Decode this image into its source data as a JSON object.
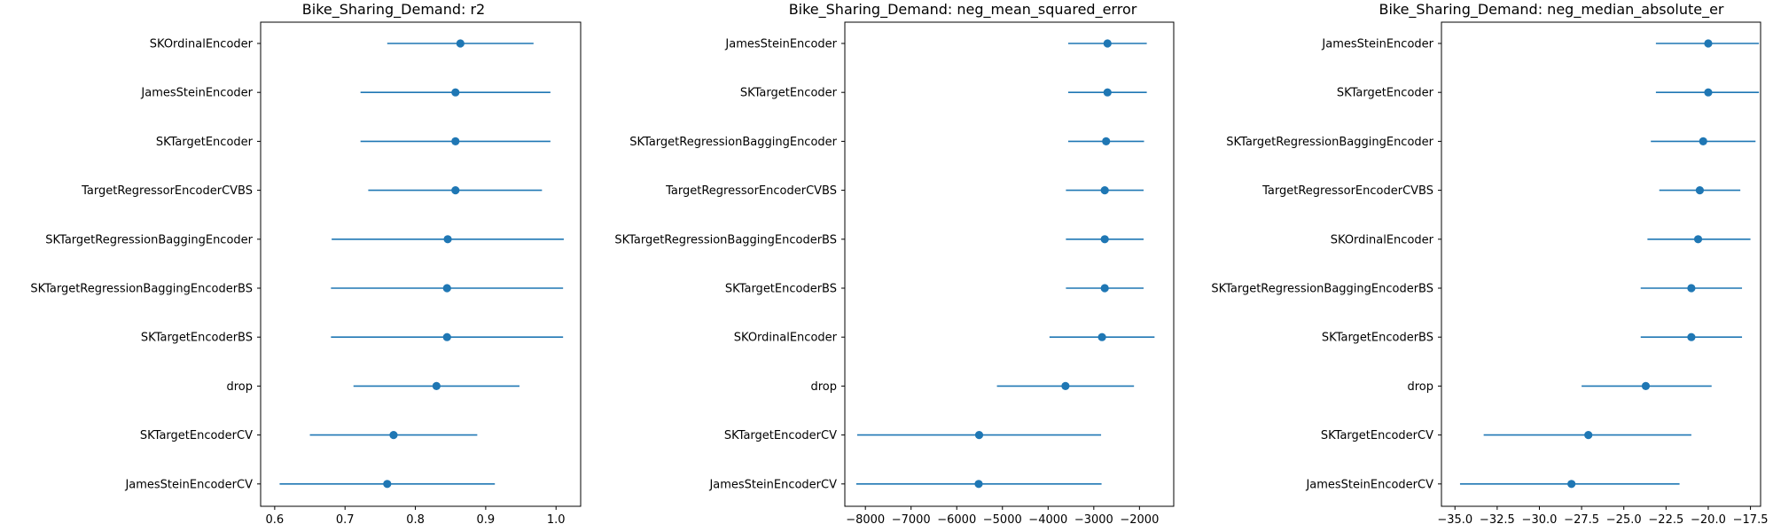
{
  "chart_data": [
    {
      "type": "errorbar",
      "title": "Bike_Sharing_Demand: r2",
      "xlabel": "",
      "ylabel": "",
      "xlim": [
        0.58,
        1.035
      ],
      "xticks": [
        0.6,
        0.7,
        0.8,
        0.9,
        1.0
      ],
      "xtick_labels": [
        "0.6",
        "0.7",
        "0.8",
        "0.9",
        "1.0"
      ],
      "grid": false,
      "color": "#1f77b4",
      "categories": [
        "SKOrdinalEncoder",
        "JamesSteinEncoder",
        "SKTargetEncoder",
        "TargetRegressorEncoderCVBS",
        "SKTargetRegressionBaggingEncoder",
        "SKTargetRegressionBaggingEncoderBS",
        "SKTargetEncoderBS",
        "drop",
        "SKTargetEncoderCV",
        "JamesSteinEncoderCV"
      ],
      "values": [
        0.864,
        0.857,
        0.857,
        0.857,
        0.846,
        0.845,
        0.845,
        0.83,
        0.769,
        0.76
      ],
      "lower": [
        0.76,
        0.722,
        0.722,
        0.733,
        0.681,
        0.68,
        0.68,
        0.712,
        0.65,
        0.607
      ],
      "upper": [
        0.968,
        0.992,
        0.992,
        0.98,
        1.011,
        1.01,
        1.01,
        0.948,
        0.888,
        0.913
      ]
    },
    {
      "type": "errorbar",
      "title": "Bike_Sharing_Demand: neg_mean_squared_error",
      "xlabel": "",
      "ylabel": "",
      "xlim": [
        -8450,
        -1250
      ],
      "xticks": [
        -8000,
        -7000,
        -6000,
        -5000,
        -4000,
        -3000,
        -2000
      ],
      "xtick_labels": [
        "−8000",
        "−7000",
        "−6000",
        "−5000",
        "−4000",
        "−3000",
        "−2000"
      ],
      "grid": false,
      "color": "#1f77b4",
      "categories": [
        "JamesSteinEncoder",
        "SKTargetEncoder",
        "SKTargetRegressionBaggingEncoder",
        "TargetRegressorEncoderCVBS",
        "SKTargetRegressionBaggingEncoderBS",
        "SKTargetEncoderBS",
        "SKOrdinalEncoder",
        "drop",
        "SKTargetEncoderCV",
        "JamesSteinEncoderCV"
      ],
      "values": [
        -2700,
        -2700,
        -2730,
        -2760,
        -2760,
        -2760,
        -2820,
        -3620,
        -5510,
        -5520
      ],
      "lower": [
        -3560,
        -3560,
        -3560,
        -3610,
        -3610,
        -3610,
        -3970,
        -5120,
        -8180,
        -8200
      ],
      "upper": [
        -1840,
        -1840,
        -1900,
        -1910,
        -1910,
        -1910,
        -1670,
        -2120,
        -2840,
        -2830
      ]
    },
    {
      "type": "errorbar",
      "title": "Bike_Sharing_Demand: neg_median_absolute_er",
      "xlabel": "",
      "ylabel": "",
      "xlim": [
        -35.8,
        -16.9
      ],
      "xticks": [
        -35.0,
        -32.5,
        -30.0,
        -27.5,
        -25.0,
        -22.5,
        -20.0,
        -17.5
      ],
      "xtick_labels": [
        "−35.0",
        "−32.5",
        "−30.0",
        "−27.5",
        "−25.0",
        "−22.5",
        "−20.0",
        "−17.5"
      ],
      "grid": false,
      "color": "#1f77b4",
      "categories": [
        "JamesSteinEncoder",
        "SKTargetEncoder",
        "SKTargetRegressionBaggingEncoder",
        "TargetRegressorEncoderCVBS",
        "SKOrdinalEncoder",
        "SKTargetRegressionBaggingEncoderBS",
        "SKTargetEncoderBS",
        "drop",
        "SKTargetEncoderCV",
        "JamesSteinEncoderCV"
      ],
      "values": [
        -20.0,
        -20.0,
        -20.3,
        -20.5,
        -20.6,
        -21.0,
        -21.0,
        -23.7,
        -27.1,
        -28.1
      ],
      "lower": [
        -23.1,
        -23.1,
        -23.4,
        -22.9,
        -23.6,
        -24.0,
        -24.0,
        -27.5,
        -33.3,
        -34.7
      ],
      "upper": [
        -17.0,
        -17.0,
        -17.2,
        -18.1,
        -17.5,
        -18.0,
        -18.0,
        -19.8,
        -21.0,
        -21.7
      ]
    }
  ]
}
